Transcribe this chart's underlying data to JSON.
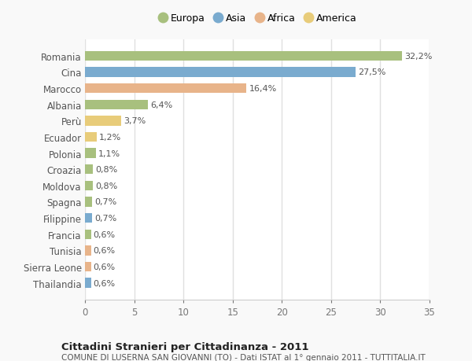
{
  "categories": [
    "Thailandia",
    "Sierra Leone",
    "Tunisia",
    "Francia",
    "Filippine",
    "Spagna",
    "Moldova",
    "Croazia",
    "Polonia",
    "Ecuador",
    "Perù",
    "Albania",
    "Marocco",
    "Cina",
    "Romania"
  ],
  "values": [
    0.6,
    0.6,
    0.6,
    0.6,
    0.7,
    0.7,
    0.8,
    0.8,
    1.1,
    1.2,
    3.7,
    6.4,
    16.4,
    27.5,
    32.2
  ],
  "labels": [
    "0,6%",
    "0,6%",
    "0,6%",
    "0,6%",
    "0,7%",
    "0,7%",
    "0,8%",
    "0,8%",
    "1,1%",
    "1,2%",
    "3,7%",
    "6,4%",
    "16,4%",
    "27,5%",
    "32,2%"
  ],
  "continents": [
    "Asia",
    "Africa",
    "Africa",
    "Europa",
    "Asia",
    "Europa",
    "Europa",
    "Europa",
    "Europa",
    "America",
    "America",
    "Europa",
    "Africa",
    "Asia",
    "Europa"
  ],
  "continent_colors": {
    "Europa": "#a8c07e",
    "Asia": "#7aabcf",
    "Africa": "#e8b48a",
    "America": "#e8cc7a"
  },
  "legend_order": [
    "Europa",
    "Asia",
    "Africa",
    "America"
  ],
  "title": "Cittadini Stranieri per Cittadinanza - 2011",
  "subtitle": "COMUNE DI LUSERNA SAN GIOVANNI (TO) - Dati ISTAT al 1° gennaio 2011 - TUTTITALIA.IT",
  "xlim": [
    0,
    35
  ],
  "xticks": [
    0,
    5,
    10,
    15,
    20,
    25,
    30,
    35
  ],
  "plot_bg_color": "#ffffff",
  "fig_bg_color": "#f9f9f9",
  "grid_color": "#e0e0e0",
  "bar_height": 0.6,
  "label_fontsize": 8,
  "ytick_fontsize": 8.5,
  "xtick_fontsize": 8.5
}
